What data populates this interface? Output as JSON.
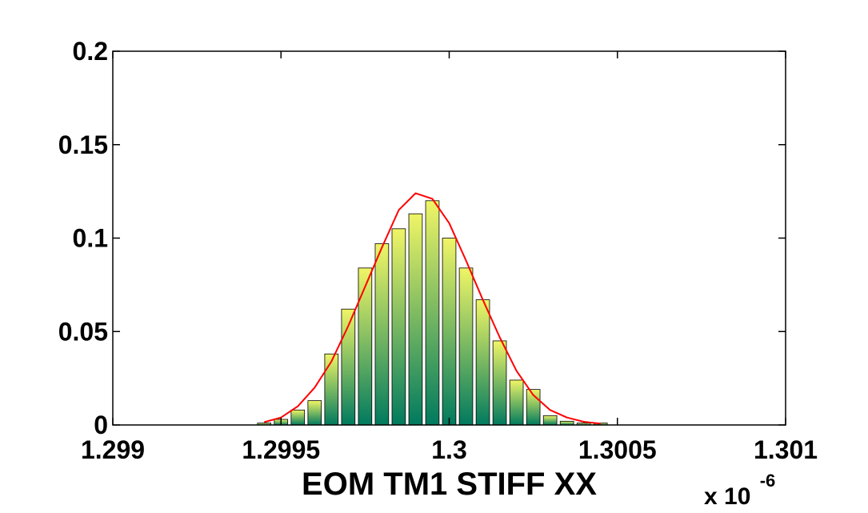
{
  "chart_data": {
    "type": "bar",
    "title": "",
    "xlabel": "EOM TM1 STIFF XX",
    "ylabel": "",
    "x_multiplier": {
      "base": "x 10",
      "exponent": "-6"
    },
    "xlim": [
      1.299,
      1.301
    ],
    "ylim": [
      0,
      0.2
    ],
    "xticks": [
      1.299,
      1.2995,
      1.3,
      1.3005,
      1.301
    ],
    "xtick_labels": [
      "1.299",
      "1.2995",
      "1.3",
      "1.3005",
      "1.301"
    ],
    "yticks": [
      0,
      0.05,
      0.1,
      0.15,
      0.2
    ],
    "ytick_labels": [
      "0",
      "0.05",
      "0.1",
      "0.15",
      "0.2"
    ],
    "grid": false,
    "bar_colormap": {
      "top": "#f0f566",
      "bottom": "#007a5e"
    },
    "bars": {
      "x": [
        1.29945,
        1.2995,
        1.29955,
        1.2996,
        1.29965,
        1.2997,
        1.29975,
        1.2998,
        1.29985,
        1.2999,
        1.29995,
        1.3,
        1.30005,
        1.3001,
        1.30015,
        1.3002,
        1.30025,
        1.3003,
        1.30035,
        1.3004,
        1.30045
      ],
      "values": [
        0.001,
        0.003,
        0.008,
        0.013,
        0.038,
        0.062,
        0.084,
        0.097,
        0.105,
        0.113,
        0.12,
        0.1,
        0.084,
        0.067,
        0.045,
        0.024,
        0.019,
        0.005,
        0.002,
        0.001,
        0.001
      ]
    },
    "series": [
      {
        "type": "line",
        "color": "#ff0000",
        "x": [
          1.29945,
          1.2995,
          1.29955,
          1.2996,
          1.29965,
          1.2997,
          1.29975,
          1.2998,
          1.29985,
          1.2999,
          1.29995,
          1.3,
          1.30005,
          1.3001,
          1.30015,
          1.3002,
          1.30025,
          1.3003,
          1.30035,
          1.3004,
          1.30045
        ],
        "values": [
          0.0015,
          0.004,
          0.01,
          0.02,
          0.034,
          0.053,
          0.074,
          0.095,
          0.115,
          0.124,
          0.121,
          0.108,
          0.088,
          0.067,
          0.047,
          0.029,
          0.016,
          0.008,
          0.004,
          0.0017,
          0.0007
        ]
      }
    ]
  }
}
